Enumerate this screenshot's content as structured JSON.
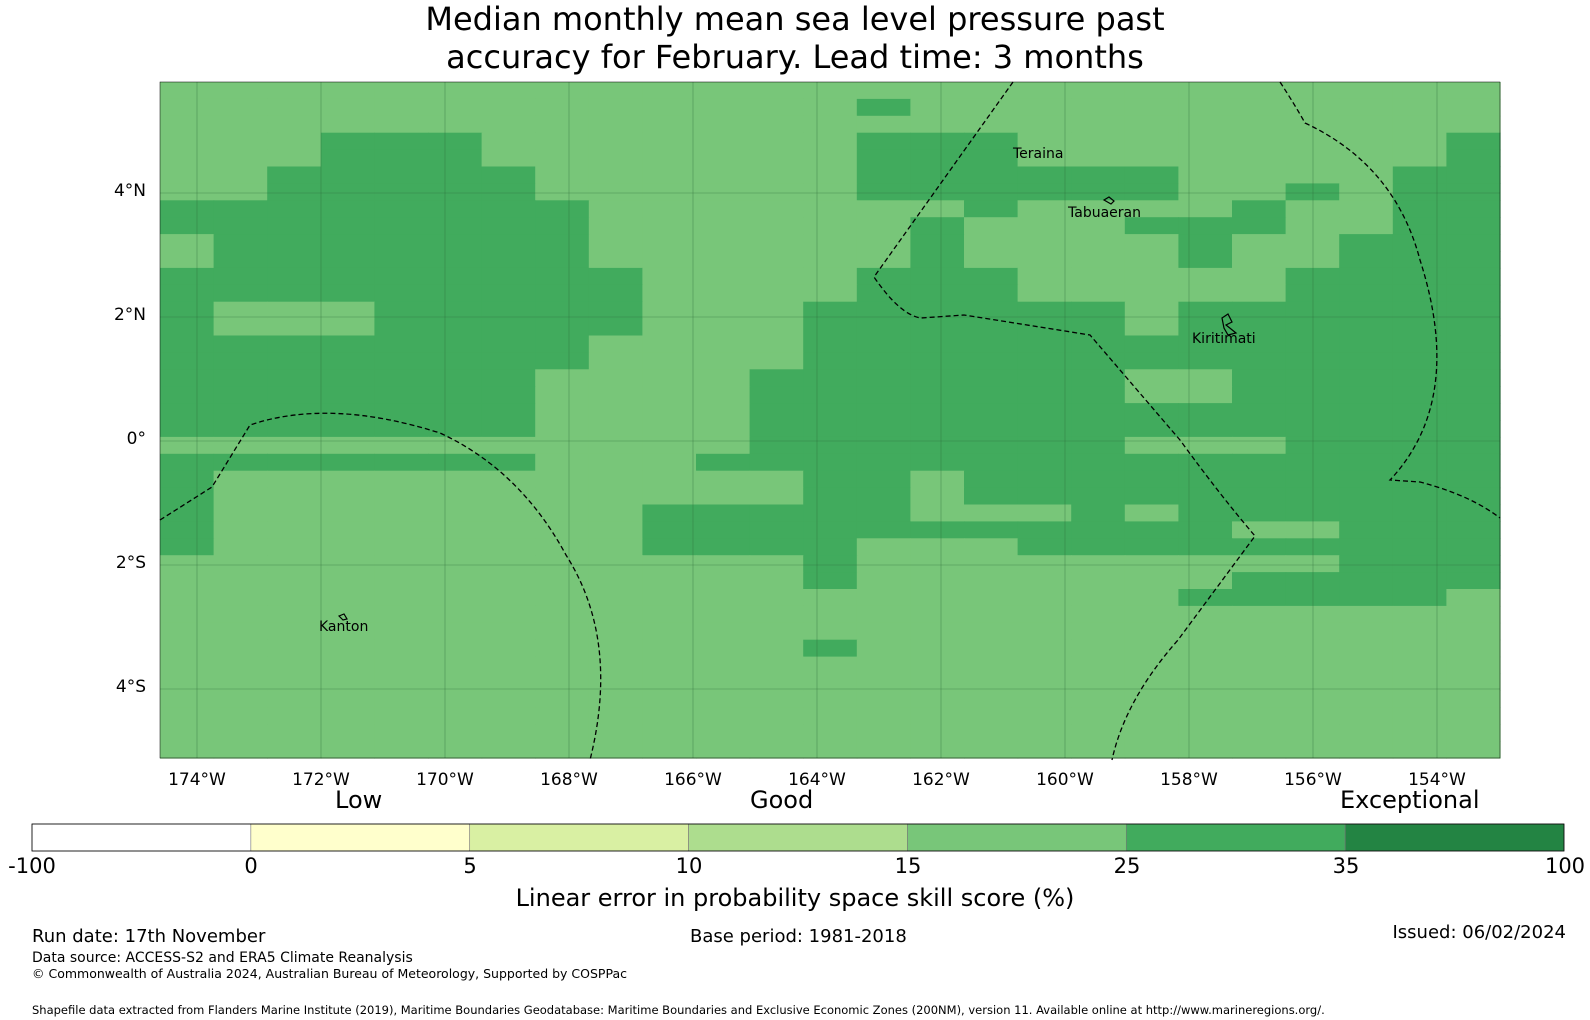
{
  "title": {
    "line1": "Median monthly mean sea level pressure past",
    "line2": "accuracy for February. Lead time: 3 months"
  },
  "map": {
    "lat_labels": [
      "4°N",
      "2°N",
      "0°",
      "2°S",
      "4°S"
    ],
    "lon_labels": [
      "174°W",
      "172°W",
      "170°W",
      "168°W",
      "166°W",
      "164°W",
      "162°W",
      "160°W",
      "158°W",
      "156°W",
      "154°W"
    ],
    "places": [
      "Teraina",
      "Tabuaeran",
      "Kiritimati",
      "Kanton"
    ],
    "class_colors": {
      "1": "#78c679",
      "2": "#41ab5d"
    },
    "skill_grid": [
      "1111111111111111111111111",
      "1111111111111211111111111",
      "1111111111111111111111111",
      "1112221111111222111111112",
      "1112221111111222111111112",
      "1122222111111222222111122",
      "1122222111111222222112122",
      "2222222211111112111121122",
      "2222222211111121112221122",
      "1222222211111121111211222",
      "1222222211111121111211222",
      "2222222221111222111112222",
      "2222222221111222111112222",
      "2111222221112222221222222",
      "2111222221112222221222222",
      "2222222211112222222222222",
      "2222222211112222222222222",
      "2222222111122222221122222",
      "2222222111122222221122222",
      "2222222111122222222222222",
      "2222222111122222222222222",
      "1111111111122222221112222",
      "2222222111222222222222222",
      "2111111111112212222222222",
      "2111111111112212222222222",
      "2111111112222211121222222",
      "2111111112222222222211222",
      "2111111112222111222222222",
      "1111111111112111111111222",
      "1111111111112111111122222",
      "1111111111111111111222221",
      "1111111111111111111111111",
      "1111111111111111111111111",
      "1111111111112111111111111",
      "1111111111111111111111111",
      "1111111111111111111111111",
      "1111111111111111111111111",
      "1111111111111111111111111",
      "1111111111111111111111111",
      "1111111111111111111111111"
    ]
  },
  "colorbar": {
    "categories": [
      "Low",
      "Good",
      "Exceptional"
    ],
    "ticks": [
      "-100",
      "0",
      "5",
      "10",
      "15",
      "25",
      "35",
      "100"
    ],
    "colors": [
      "#ffffff",
      "#ffffcc",
      "#d9f0a3",
      "#addd8e",
      "#78c679",
      "#41ab5d",
      "#238443"
    ],
    "label": "Linear error in probability space skill score (%)"
  },
  "footer": {
    "run_date": "Run date: 17th November",
    "base_period": "Base period: 1981-2018",
    "issued": "Issued: 06/02/2024",
    "data_source": "Data source: ACCESS-S2 and ERA5 Climate Reanalysis",
    "copyright": "© Commonwealth of Australia 2024, Australian Bureau of Meteorology, Supported by COSPPac",
    "shapefile": "Shapefile data extracted from Flanders Marine Institute (2019), Maritime Boundaries Geodatabase: Maritime Boundaries and Exclusive Economic Zones (200NM), version 11. Available online at http://www.marineregions.org/."
  }
}
